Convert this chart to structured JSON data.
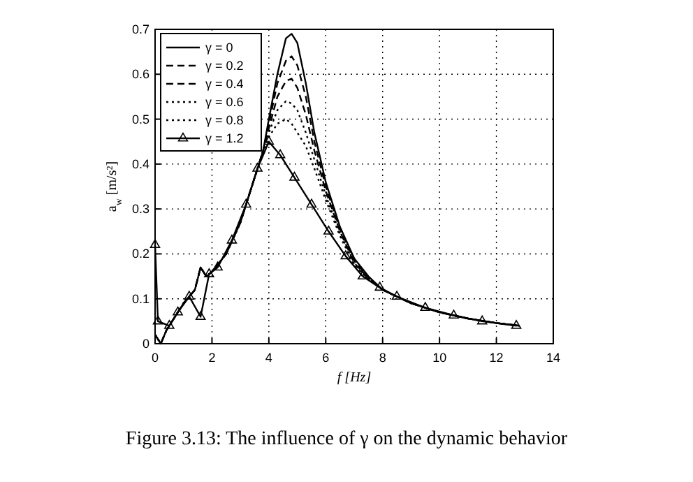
{
  "chart_data": {
    "type": "line",
    "xlabel": "f [Hz]",
    "ylabel": "a$_{w}$ [m/s²]",
    "annotations": [
      "Figure 3.13: The influence of γ on the dynamic behavior"
    ],
    "x": [
      0,
      0.2,
      0.4,
      0.7,
      1,
      1.4,
      1.6,
      1.8,
      2,
      2.5,
      3,
      3.5,
      3.8,
      4,
      4.3,
      4.6,
      4.8,
      5,
      5.3,
      5.6,
      6,
      6.5,
      7,
      7.5,
      8,
      9,
      10,
      11,
      12,
      12.8
    ],
    "xlim": [
      0,
      14
    ],
    "xticks": [
      0,
      2,
      4,
      6,
      8,
      10,
      12,
      14
    ],
    "ylim": [
      0,
      0.7
    ],
    "yticks": [
      0,
      0.1,
      0.2,
      0.3,
      0.4,
      0.5,
      0.6,
      0.7
    ],
    "grid": true,
    "legend": "top left",
    "series": [
      {
        "name": "γ = 0",
        "color": "#000000",
        "line_style": "solid",
        "marker": "none",
        "values": [
          0.02,
          0.0,
          0.03,
          0.06,
          0.09,
          0.12,
          0.17,
          0.15,
          0.16,
          0.2,
          0.27,
          0.37,
          0.43,
          0.5,
          0.6,
          0.68,
          0.69,
          0.67,
          0.58,
          0.47,
          0.36,
          0.26,
          0.19,
          0.15,
          0.12,
          0.09,
          0.07,
          0.056,
          0.046,
          0.04
        ]
      },
      {
        "name": "γ = 0.2",
        "color": "#000000",
        "line_style": "dashed",
        "marker": "none",
        "values": [
          0.02,
          0.0,
          0.03,
          0.06,
          0.09,
          0.12,
          0.17,
          0.15,
          0.16,
          0.2,
          0.27,
          0.37,
          0.43,
          0.49,
          0.58,
          0.63,
          0.64,
          0.62,
          0.55,
          0.45,
          0.35,
          0.255,
          0.185,
          0.148,
          0.12,
          0.09,
          0.07,
          0.056,
          0.046,
          0.04
        ]
      },
      {
        "name": "γ = 0.4",
        "color": "#000000",
        "line_style": "dashed",
        "marker": "none",
        "values": [
          0.02,
          0.0,
          0.03,
          0.06,
          0.09,
          0.12,
          0.17,
          0.15,
          0.16,
          0.2,
          0.27,
          0.37,
          0.43,
          0.48,
          0.55,
          0.585,
          0.59,
          0.57,
          0.51,
          0.43,
          0.34,
          0.25,
          0.18,
          0.146,
          0.12,
          0.09,
          0.07,
          0.056,
          0.046,
          0.04
        ]
      },
      {
        "name": "γ = 0.6",
        "color": "#000000",
        "line_style": "dotted",
        "marker": "none",
        "values": [
          0.02,
          0.0,
          0.03,
          0.06,
          0.09,
          0.12,
          0.17,
          0.15,
          0.16,
          0.2,
          0.27,
          0.37,
          0.43,
          0.47,
          0.52,
          0.54,
          0.535,
          0.52,
          0.47,
          0.41,
          0.33,
          0.245,
          0.178,
          0.145,
          0.12,
          0.09,
          0.07,
          0.056,
          0.046,
          0.04
        ]
      },
      {
        "name": "γ = 0.8",
        "color": "#000000",
        "line_style": "dotted",
        "marker": "none",
        "values": [
          0.02,
          0.0,
          0.03,
          0.06,
          0.09,
          0.12,
          0.17,
          0.15,
          0.16,
          0.2,
          0.27,
          0.37,
          0.43,
          0.46,
          0.49,
          0.5,
          0.49,
          0.47,
          0.44,
          0.39,
          0.32,
          0.24,
          0.175,
          0.143,
          0.12,
          0.09,
          0.07,
          0.056,
          0.046,
          0.04
        ]
      },
      {
        "name": "γ = 1.2",
        "color": "#000000",
        "line_style": "solid",
        "marker": "triangle",
        "x": [
          0,
          0.1,
          0.5,
          0.8,
          1.2,
          1.6,
          1.9,
          2.2,
          2.7,
          3.2,
          3.6,
          4,
          4.4,
          4.9,
          5.5,
          6.1,
          6.7,
          7.3,
          7.9,
          8.5,
          9.5,
          10.5,
          11.5,
          12.7
        ],
        "values": [
          0.22,
          0.05,
          0.04,
          0.07,
          0.105,
          0.06,
          0.155,
          0.17,
          0.23,
          0.31,
          0.39,
          0.45,
          0.42,
          0.37,
          0.31,
          0.25,
          0.195,
          0.15,
          0.125,
          0.105,
          0.08,
          0.063,
          0.05,
          0.04
        ]
      }
    ]
  }
}
